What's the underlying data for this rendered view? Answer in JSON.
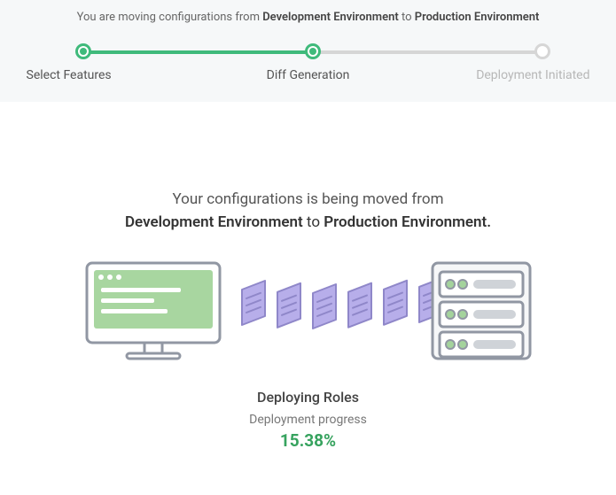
{
  "colors": {
    "accent_green": "#3fba7b",
    "pending_gray": "#d6d6d6",
    "percent_green": "#37a35f",
    "band_bg": "#f6f8f9",
    "monitor_stroke": "#9197a3",
    "monitor_screen": "#a8d6a0",
    "monitor_screen_lines": "#ffffff",
    "doc_fill": "#b7aeea",
    "doc_stroke": "#8f87c9",
    "server_stroke": "#9197a3",
    "server_fill": "#f6f7f8",
    "server_light_green": "#a4d39c",
    "server_slot": "#cfd3d8"
  },
  "notice": {
    "prefix": "You are moving configurations from ",
    "source": "Development Environment",
    "mid": " to ",
    "target": "Production Environment"
  },
  "stepper": {
    "steps": [
      {
        "label": "Select Features",
        "state": "done"
      },
      {
        "label": "Diff Generation",
        "state": "current"
      },
      {
        "label": "Deployment Initiated",
        "state": "pending"
      }
    ]
  },
  "hero": {
    "line1": "Your configurations is being moved from",
    "source": "Development Environment",
    "mid": " to ",
    "target": "Production Environment.",
    "deploying_title": "Deploying Roles",
    "progress_label": "Deployment progress",
    "percent": "15.38%"
  }
}
